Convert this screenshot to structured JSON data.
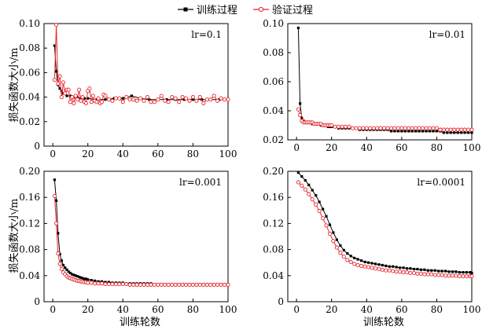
{
  "legend": [
    {
      "label": "训练过程",
      "color": "#000000",
      "marker": "square"
    },
    {
      "label": "验证过程",
      "color": "#e8262b",
      "marker": "circle"
    }
  ],
  "x_axis_title": "训练轮数",
  "y_axis_title": "损失函数大小/m",
  "chart_data": [
    {
      "type": "line",
      "annotation": "lr=0.1",
      "xlim": [
        -5,
        100
      ],
      "x_ticks": [
        0,
        20,
        40,
        60,
        80,
        100
      ],
      "ylim": [
        0,
        0.1
      ],
      "y_ticks": [
        0,
        0.02,
        0.04,
        0.06,
        0.08,
        0.1
      ],
      "y_tick_labels": [
        "0",
        "0.02",
        "0.04",
        "0.06",
        "0.08",
        "0.10"
      ],
      "series": [
        {
          "name": "训练过程",
          "x": [
            1,
            2,
            3,
            4,
            5,
            6,
            8,
            10,
            12,
            14,
            16,
            18,
            20,
            25,
            30,
            35,
            40,
            45,
            50,
            55,
            60,
            65,
            70,
            75,
            80,
            85,
            90,
            95,
            100
          ],
          "values": [
            0.082,
            0.061,
            0.05,
            0.047,
            0.045,
            0.043,
            0.041,
            0.041,
            0.04,
            0.04,
            0.039,
            0.039,
            0.039,
            0.038,
            0.038,
            0.039,
            0.039,
            0.041,
            0.039,
            0.038,
            0.038,
            0.038,
            0.038,
            0.038,
            0.038,
            0.038,
            0.038,
            0.038,
            0.038
          ]
        },
        {
          "name": "验证过程",
          "x": [
            1,
            2,
            3,
            4,
            5,
            6,
            7,
            8,
            9,
            10,
            11,
            12,
            13,
            14,
            15,
            16,
            17,
            18,
            19,
            20,
            21,
            22,
            23,
            24,
            25,
            26,
            27,
            28,
            29,
            30,
            32,
            34,
            36,
            38,
            40,
            42,
            44,
            46,
            48,
            50,
            52,
            54,
            56,
            58,
            60,
            62,
            64,
            66,
            68,
            70,
            72,
            74,
            76,
            78,
            80,
            82,
            84,
            86,
            88,
            90,
            92,
            94,
            96,
            98,
            100
          ],
          "values": [
            0.054,
            0.099,
            0.051,
            0.057,
            0.04,
            0.052,
            0.043,
            0.046,
            0.046,
            0.036,
            0.04,
            0.035,
            0.041,
            0.038,
            0.046,
            0.037,
            0.04,
            0.036,
            0.035,
            0.045,
            0.047,
            0.036,
            0.041,
            0.037,
            0.036,
            0.039,
            0.035,
            0.036,
            0.042,
            0.041,
            0.038,
            0.037,
            0.039,
            0.039,
            0.036,
            0.04,
            0.038,
            0.038,
            0.037,
            0.039,
            0.037,
            0.04,
            0.036,
            0.036,
            0.038,
            0.041,
            0.037,
            0.036,
            0.04,
            0.039,
            0.036,
            0.04,
            0.039,
            0.037,
            0.04,
            0.037,
            0.04,
            0.035,
            0.038,
            0.038,
            0.041,
            0.037,
            0.039,
            0.038,
            0.038
          ]
        }
      ]
    },
    {
      "type": "line",
      "annotation": "lr=0.01",
      "xlim": [
        -5,
        100
      ],
      "x_ticks": [
        0,
        20,
        40,
        60,
        80,
        100
      ],
      "ylim": [
        0.02,
        0.1
      ],
      "y_ticks": [
        0.02,
        0.04,
        0.06,
        0.08,
        0.1
      ],
      "y_tick_labels": [
        "0.02",
        "0.04",
        "0.06",
        "0.08",
        "0.10"
      ],
      "series": [
        {
          "name": "训练过程",
          "x": [
            1,
            2,
            3,
            4,
            5,
            6,
            7,
            8,
            9,
            10,
            11,
            12,
            13,
            14,
            15,
            16,
            17,
            18,
            19,
            20,
            22,
            24,
            26,
            28,
            30,
            32,
            34,
            36,
            38,
            40,
            42,
            44,
            46,
            48,
            50,
            52,
            54,
            56,
            58,
            60,
            62,
            64,
            66,
            68,
            70,
            72,
            74,
            76,
            78,
            80,
            82,
            84,
            86,
            88,
            90,
            92,
            94,
            96,
            98,
            100
          ],
          "values": [
            0.097,
            0.045,
            0.035,
            0.033,
            0.032,
            0.032,
            0.032,
            0.032,
            0.031,
            0.031,
            0.031,
            0.031,
            0.031,
            0.03,
            0.03,
            0.03,
            0.03,
            0.029,
            0.029,
            0.029,
            0.029,
            0.028,
            0.028,
            0.028,
            0.028,
            0.028,
            0.028,
            0.027,
            0.027,
            0.027,
            0.027,
            0.027,
            0.027,
            0.027,
            0.027,
            0.027,
            0.026,
            0.026,
            0.026,
            0.026,
            0.026,
            0.026,
            0.026,
            0.026,
            0.026,
            0.026,
            0.026,
            0.026,
            0.026,
            0.026,
            0.026,
            0.025,
            0.025,
            0.025,
            0.025,
            0.025,
            0.025,
            0.025,
            0.025,
            0.025
          ]
        },
        {
          "name": "验证过程",
          "x": [
            1,
            2,
            3,
            4,
            5,
            6,
            7,
            8,
            9,
            10,
            11,
            12,
            13,
            14,
            15,
            16,
            17,
            18,
            19,
            20,
            22,
            24,
            26,
            28,
            30,
            32,
            34,
            36,
            38,
            40,
            42,
            44,
            46,
            48,
            50,
            52,
            54,
            56,
            58,
            60,
            62,
            64,
            66,
            68,
            70,
            72,
            74,
            76,
            78,
            80,
            82,
            84,
            86,
            88,
            90,
            92,
            94,
            96,
            98,
            100
          ],
          "values": [
            0.041,
            0.037,
            0.033,
            0.032,
            0.032,
            0.032,
            0.032,
            0.032,
            0.032,
            0.031,
            0.031,
            0.031,
            0.031,
            0.031,
            0.03,
            0.03,
            0.03,
            0.03,
            0.03,
            0.03,
            0.029,
            0.029,
            0.029,
            0.029,
            0.029,
            0.028,
            0.028,
            0.028,
            0.028,
            0.028,
            0.028,
            0.028,
            0.028,
            0.028,
            0.028,
            0.028,
            0.028,
            0.028,
            0.028,
            0.028,
            0.028,
            0.028,
            0.028,
            0.028,
            0.028,
            0.028,
            0.028,
            0.028,
            0.028,
            0.028,
            0.027,
            0.027,
            0.027,
            0.027,
            0.027,
            0.027,
            0.027,
            0.027,
            0.027,
            0.027
          ]
        }
      ]
    },
    {
      "type": "line",
      "annotation": "lr=0.001",
      "xlim": [
        -5,
        100
      ],
      "x_ticks": [
        0,
        20,
        40,
        60,
        80,
        100
      ],
      "ylim": [
        0,
        0.2
      ],
      "y_ticks": [
        0,
        0.04,
        0.08,
        0.12,
        0.16,
        0.2
      ],
      "y_tick_labels": [
        "0",
        "0.04",
        "0.08",
        "0.12",
        "0.16",
        "0.20"
      ],
      "series": [
        {
          "name": "训练过程",
          "x": [
            1,
            2,
            3,
            4,
            5,
            6,
            7,
            8,
            9,
            10,
            11,
            12,
            13,
            14,
            15,
            16,
            17,
            18,
            19,
            20,
            22,
            24,
            26,
            28,
            30,
            32,
            34,
            36,
            38,
            40,
            42,
            44,
            46,
            48,
            50,
            52,
            54,
            56,
            58,
            60,
            62,
            64,
            66,
            68,
            70,
            72,
            74,
            76,
            78,
            80,
            82,
            84,
            86,
            88,
            90,
            92,
            94,
            96,
            98,
            100
          ],
          "values": [
            0.187,
            0.155,
            0.105,
            0.073,
            0.063,
            0.056,
            0.052,
            0.049,
            0.046,
            0.044,
            0.042,
            0.041,
            0.04,
            0.039,
            0.038,
            0.037,
            0.036,
            0.035,
            0.035,
            0.034,
            0.033,
            0.032,
            0.031,
            0.031,
            0.03,
            0.03,
            0.029,
            0.029,
            0.029,
            0.029,
            0.028,
            0.028,
            0.028,
            0.028,
            0.028,
            0.028,
            0.028,
            0.028,
            0.027,
            0.027,
            0.027,
            0.027,
            0.027,
            0.027,
            0.027,
            0.027,
            0.027,
            0.027,
            0.027,
            0.027,
            0.027,
            0.027,
            0.027,
            0.027,
            0.027,
            0.027,
            0.027,
            0.027,
            0.027,
            0.027
          ]
        },
        {
          "name": "验证过程",
          "x": [
            1,
            2,
            3,
            4,
            5,
            6,
            7,
            8,
            9,
            10,
            11,
            12,
            13,
            14,
            15,
            16,
            17,
            18,
            19,
            20,
            22,
            24,
            26,
            28,
            30,
            32,
            34,
            36,
            38,
            40,
            42,
            44,
            46,
            48,
            50,
            52,
            54,
            56,
            58,
            60,
            62,
            64,
            66,
            68,
            70,
            72,
            74,
            76,
            78,
            80,
            82,
            84,
            86,
            88,
            90,
            92,
            94,
            96,
            98,
            100
          ],
          "values": [
            0.162,
            0.12,
            0.074,
            0.058,
            0.05,
            0.045,
            0.042,
            0.039,
            0.037,
            0.036,
            0.035,
            0.034,
            0.033,
            0.032,
            0.032,
            0.031,
            0.031,
            0.03,
            0.03,
            0.029,
            0.029,
            0.028,
            0.028,
            0.028,
            0.027,
            0.027,
            0.027,
            0.027,
            0.027,
            0.027,
            0.027,
            0.026,
            0.026,
            0.026,
            0.026,
            0.026,
            0.026,
            0.026,
            0.026,
            0.026,
            0.026,
            0.026,
            0.026,
            0.026,
            0.026,
            0.026,
            0.026,
            0.026,
            0.026,
            0.026,
            0.026,
            0.026,
            0.026,
            0.026,
            0.026,
            0.026,
            0.026,
            0.026,
            0.026,
            0.026
          ]
        }
      ]
    },
    {
      "type": "line",
      "annotation": "lr=0.0001",
      "xlim": [
        -5,
        100
      ],
      "x_ticks": [
        0,
        20,
        40,
        60,
        80,
        100
      ],
      "ylim": [
        0,
        0.2
      ],
      "y_ticks": [
        0,
        0.04,
        0.08,
        0.12,
        0.16,
        0.2
      ],
      "y_tick_labels": [
        "0",
        "0.04",
        "0.08",
        "0.12",
        "0.16",
        "0.20"
      ],
      "series": [
        {
          "name": "训练过程",
          "x": [
            1,
            3,
            5,
            7,
            9,
            11,
            13,
            15,
            17,
            19,
            21,
            23,
            25,
            27,
            29,
            31,
            33,
            35,
            37,
            39,
            41,
            43,
            45,
            47,
            49,
            51,
            53,
            55,
            57,
            59,
            61,
            63,
            65,
            67,
            69,
            71,
            73,
            75,
            77,
            79,
            81,
            83,
            85,
            87,
            89,
            91,
            93,
            95,
            97,
            99,
            100
          ],
          "values": [
            0.198,
            0.192,
            0.186,
            0.179,
            0.171,
            0.163,
            0.153,
            0.142,
            0.131,
            0.118,
            0.106,
            0.095,
            0.086,
            0.079,
            0.074,
            0.07,
            0.067,
            0.065,
            0.063,
            0.061,
            0.06,
            0.059,
            0.058,
            0.057,
            0.056,
            0.055,
            0.054,
            0.054,
            0.053,
            0.052,
            0.052,
            0.051,
            0.051,
            0.05,
            0.05,
            0.049,
            0.049,
            0.048,
            0.048,
            0.048,
            0.047,
            0.047,
            0.047,
            0.046,
            0.046,
            0.046,
            0.045,
            0.045,
            0.045,
            0.045,
            0.044
          ]
        },
        {
          "name": "验证过程",
          "x": [
            1,
            3,
            5,
            7,
            9,
            11,
            13,
            15,
            17,
            19,
            21,
            23,
            25,
            27,
            29,
            31,
            33,
            35,
            37,
            39,
            41,
            43,
            45,
            47,
            49,
            51,
            53,
            55,
            57,
            59,
            61,
            63,
            65,
            67,
            69,
            71,
            73,
            75,
            77,
            79,
            81,
            83,
            85,
            87,
            89,
            91,
            93,
            95,
            97,
            99,
            100
          ],
          "values": [
            0.183,
            0.178,
            0.172,
            0.165,
            0.157,
            0.149,
            0.139,
            0.128,
            0.117,
            0.104,
            0.093,
            0.083,
            0.075,
            0.069,
            0.064,
            0.061,
            0.058,
            0.056,
            0.055,
            0.054,
            0.053,
            0.052,
            0.051,
            0.05,
            0.049,
            0.048,
            0.048,
            0.047,
            0.046,
            0.046,
            0.045,
            0.045,
            0.044,
            0.044,
            0.043,
            0.043,
            0.042,
            0.042,
            0.042,
            0.041,
            0.041,
            0.041,
            0.04,
            0.04,
            0.04,
            0.04,
            0.039,
            0.039,
            0.039,
            0.039,
            0.039
          ]
        }
      ]
    }
  ]
}
